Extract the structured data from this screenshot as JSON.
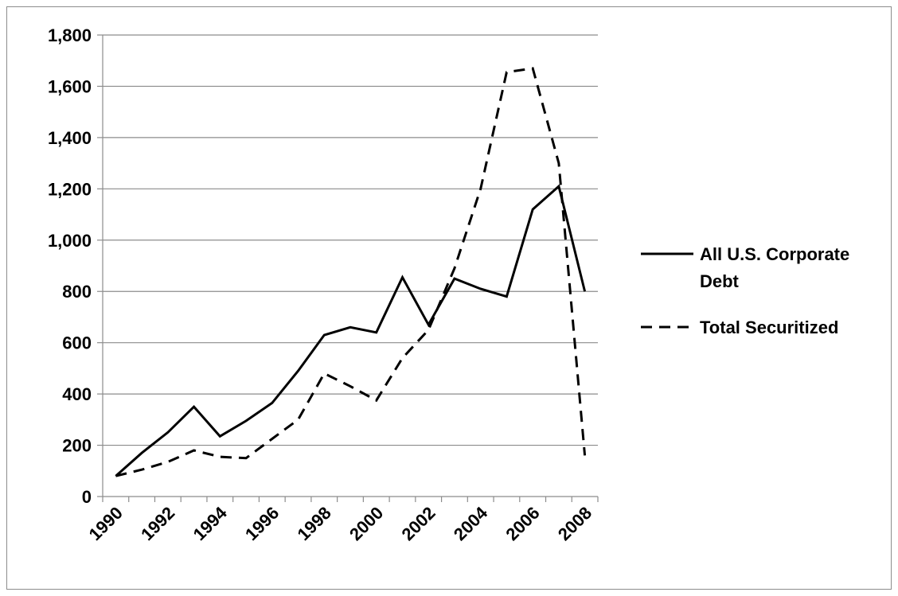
{
  "chart_data": {
    "type": "line",
    "title": "",
    "xlabel": "",
    "ylabel": "",
    "x": [
      1990,
      1991,
      1992,
      1993,
      1994,
      1995,
      1996,
      1997,
      1998,
      1999,
      2000,
      2001,
      2002,
      2003,
      2004,
      2005,
      2006,
      2007,
      2008
    ],
    "x_tick_labels": [
      "1990",
      "1992",
      "1994",
      "1996",
      "1998",
      "2000",
      "2002",
      "2004",
      "2006",
      "2008"
    ],
    "y_tick_labels": [
      "0",
      "200",
      "400",
      "600",
      "800",
      "1,000",
      "1,200",
      "1,400",
      "1,600",
      "1,800"
    ],
    "ylim": [
      0,
      1800
    ],
    "grid": "horizontal",
    "legend_position": "right",
    "series": [
      {
        "name": "All U.S. Corporate Debt",
        "name_lines": [
          "All U.S. Corporate",
          "Debt"
        ],
        "style": "solid",
        "color": "#000000",
        "values": [
          80,
          170,
          250,
          350,
          235,
          295,
          365,
          490,
          630,
          660,
          640,
          855,
          670,
          850,
          810,
          780,
          1120,
          1210,
          800
        ]
      },
      {
        "name": "Total Securitized",
        "name_lines": [
          "Total Securitized"
        ],
        "style": "dashed",
        "color": "#000000",
        "values": [
          80,
          105,
          135,
          180,
          155,
          150,
          225,
          300,
          480,
          430,
          375,
          540,
          650,
          890,
          1200,
          1655,
          1670,
          1300,
          160
        ]
      }
    ]
  }
}
